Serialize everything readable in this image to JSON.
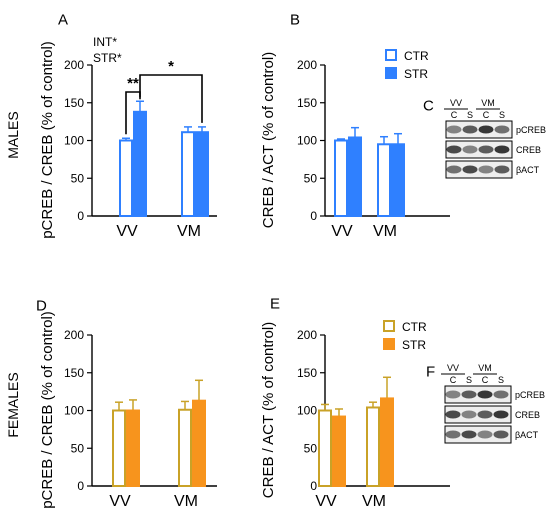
{
  "figure": {
    "row_labels": {
      "males": "MALES",
      "females": "FEMALES"
    }
  },
  "colors": {
    "male_blue": "#2f80ff",
    "male_blue_dark": "#1f5fd6",
    "female_orange": "#f7941d",
    "female_gold": "#c9a227",
    "axis": "#000000"
  },
  "chart_data": [
    {
      "panel": "A",
      "type": "bar",
      "ylabel": "pCREB / CREB (% of control)",
      "categories": [
        "VV",
        "VM"
      ],
      "ylim": [
        0,
        200
      ],
      "yticks": [
        "0",
        "50",
        "100",
        "150",
        "200"
      ],
      "series": [
        {
          "name": "CTR",
          "style": "open",
          "values": [
            100,
            111
          ],
          "errors": [
            3,
            7
          ]
        },
        {
          "name": "STR",
          "style": "filled",
          "values": [
            138,
            111
          ],
          "errors": [
            14,
            7
          ]
        }
      ],
      "stats_text": [
        "INT*",
        "STR*"
      ],
      "annotations": [
        {
          "label": "**",
          "from": "VV CTR",
          "to": "VV STR"
        },
        {
          "label": "*",
          "from": "VV STR",
          "to": "VM STR"
        }
      ]
    },
    {
      "panel": "B",
      "type": "bar",
      "ylabel": "CREB / ACT (% of control)",
      "categories": [
        "VV",
        "VM"
      ],
      "ylim": [
        0,
        200
      ],
      "yticks": [
        "0",
        "50",
        "100",
        "150",
        "200"
      ],
      "series": [
        {
          "name": "CTR",
          "style": "open",
          "values": [
            100,
            95
          ],
          "errors": [
            2,
            10
          ]
        },
        {
          "name": "STR",
          "style": "filled",
          "values": [
            104,
            95
          ],
          "errors": [
            13,
            14
          ]
        }
      ],
      "legend": {
        "position": "top-right",
        "items": [
          "CTR",
          "STR"
        ]
      }
    },
    {
      "panel": "D",
      "type": "bar",
      "ylabel": "pCREB / CREB  (% of control)",
      "categories": [
        "VV",
        "VM"
      ],
      "ylim": [
        0,
        200
      ],
      "yticks": [
        "0",
        "50",
        "100",
        "150",
        "200"
      ],
      "series": [
        {
          "name": "CTR",
          "style": "open",
          "values": [
            100,
            101
          ],
          "errors": [
            11,
            11
          ]
        },
        {
          "name": "STR",
          "style": "filled",
          "values": [
            100,
            113
          ],
          "errors": [
            14,
            27
          ]
        }
      ]
    },
    {
      "panel": "E",
      "type": "bar",
      "ylabel": "CREB / ACT  (% of control)",
      "categories": [
        "VV",
        "VM"
      ],
      "ylim": [
        0,
        200
      ],
      "yticks": [
        "0",
        "50",
        "100",
        "150",
        "200"
      ],
      "series": [
        {
          "name": "CTR",
          "style": "open",
          "values": [
            100,
            104
          ],
          "errors": [
            8,
            7
          ]
        },
        {
          "name": "STR",
          "style": "filled",
          "values": [
            92,
            116
          ],
          "errors": [
            10,
            28
          ]
        }
      ],
      "legend": {
        "position": "top-right",
        "items": [
          "CTR",
          "STR"
        ]
      }
    }
  ],
  "blots": [
    {
      "panel": "C",
      "groups": [
        "VV",
        "VM"
      ],
      "lanes": [
        "C",
        "S",
        "C",
        "S"
      ],
      "rows": [
        "pCREB",
        "CREB",
        "βACT"
      ]
    },
    {
      "panel": "F",
      "groups": [
        "VV",
        "VM"
      ],
      "lanes": [
        "C",
        "S",
        "C",
        "S"
      ],
      "rows": [
        "pCREB",
        "CREB",
        "βACT"
      ]
    }
  ]
}
